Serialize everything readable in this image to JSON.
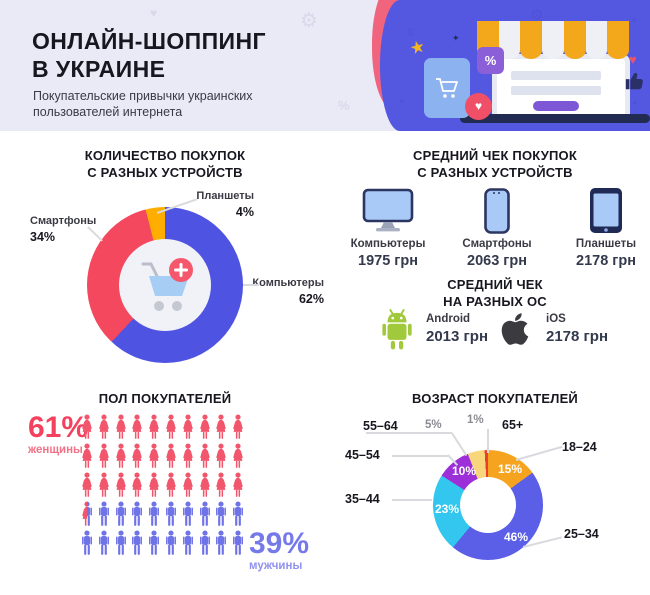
{
  "header": {
    "title": "ОНЛАЙН-ШОППИНГ\nВ УКРАИНЕ",
    "subtitle": "Покупательские привычки украинских\nпользователей интернета",
    "illustration": {
      "percent_label": "%"
    }
  },
  "purchases_by_device": {
    "title": "КОЛИЧЕСТВО ПОКУПОК\nС РАЗНЫХ УСТРОЙСТВ",
    "callouts": [
      {
        "label": "Компьютеры",
        "pct": "62%"
      },
      {
        "label": "Смартфоны",
        "pct": "34%"
      },
      {
        "label": "Планшеты",
        "pct": "4%"
      }
    ]
  },
  "avg_check_by_device": {
    "title": "СРЕДНИЙ ЧЕК ПОКУПОК\nС РАЗНЫХ УСТРОЙСТВ",
    "items": [
      {
        "icon": "desktop-icon",
        "label": "Компьютеры",
        "value": "1975 грн"
      },
      {
        "icon": "smartphone-icon",
        "label": "Смартфоны",
        "value": "2063 грн"
      },
      {
        "icon": "tablet-icon",
        "label": "Планшеты",
        "value": "2178 грн"
      }
    ]
  },
  "avg_check_by_os": {
    "title": "СРЕДНИЙ ЧЕК\nНА РАЗНЫХ ОС",
    "items": [
      {
        "icon": "android-icon",
        "label": "Android",
        "value": "2013 грн"
      },
      {
        "icon": "apple-icon",
        "label": "iOS",
        "value": "2178 грн"
      }
    ]
  },
  "gender": {
    "title": "ПОЛ ПОКУПАТЕЛЕЙ",
    "female": {
      "pct": "61%",
      "label": "женщины",
      "color": "#f2566c"
    },
    "male": {
      "pct": "39%",
      "label": "мужчины",
      "color": "#6f73e8"
    },
    "pictogram": {
      "total": 50,
      "columns": 10,
      "female_full": 30,
      "split": 1,
      "male_full": 19
    }
  },
  "age": {
    "title": "ВОЗРАСТ ПОКУПАТЕЛЕЙ",
    "outer_labels": {
      "r55_64": "55–64",
      "p5": "5%",
      "p1": "1%",
      "r65": "65+",
      "r18_24": "18–24",
      "r45_54": "45–54",
      "r35_44": "35–44",
      "r25_34": "25–34"
    },
    "inner_labels": {
      "p15": "15%",
      "p46": "46%",
      "p23": "23%",
      "p10": "10%"
    }
  },
  "chart_data": [
    {
      "type": "pie",
      "title": "КОЛИЧЕСТВО ПОКУПОК С РАЗНЫХ УСТРОЙСТВ",
      "labels": [
        "Компьютеры",
        "Смартфоны",
        "Планшеты"
      ],
      "values": [
        62,
        34,
        4
      ],
      "colors": [
        "#4f53e2",
        "#f4485e",
        "#ffae00"
      ],
      "unit": "%",
      "donut": true,
      "start_angle_deg": 0,
      "center_icon": "shopping-cart"
    },
    {
      "type": "pie",
      "title": "ВОЗРАСТ ПОКУПАТЕЛЕЙ",
      "labels": [
        "18–24",
        "25–34",
        "35–44",
        "45–54",
        "55–64",
        "65+"
      ],
      "values": [
        15,
        46,
        23,
        10,
        5,
        1
      ],
      "colors": [
        "#f6a41f",
        "#5b5fe8",
        "#33c6ee",
        "#9c2fd8",
        "#f8d77c",
        "#e8402c"
      ],
      "unit": "%",
      "donut": true,
      "start_angle_deg": 0
    }
  ]
}
